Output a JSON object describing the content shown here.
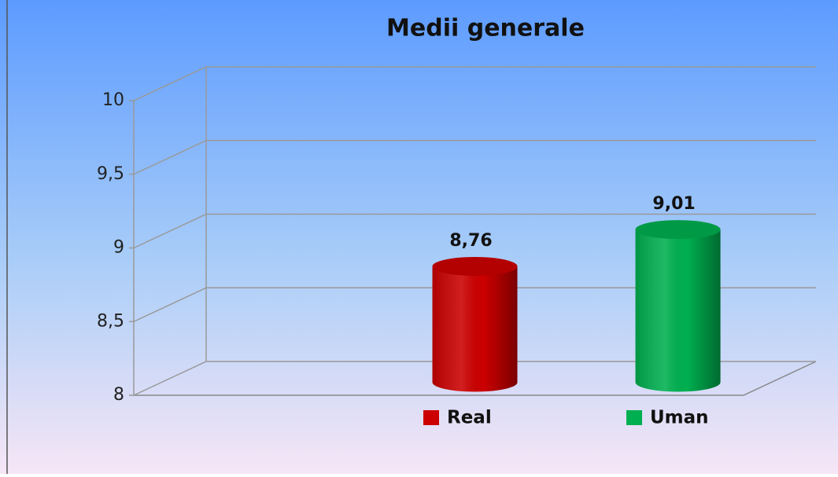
{
  "chart_data": {
    "type": "bar3d",
    "title": "Medii generale",
    "categories": [
      null
    ],
    "series": [
      {
        "name": "Real",
        "color": "#cc0000",
        "values": [
          8.76
        ],
        "value_labels": [
          "8,76"
        ]
      },
      {
        "name": "Uman",
        "color": "#00b050",
        "values": [
          9.01
        ],
        "value_labels": [
          "9,01"
        ]
      }
    ],
    "ylim": [
      8,
      10
    ],
    "yticks": [
      8,
      {
        "value": 8.5,
        "label": "8,5"
      },
      9,
      {
        "value": 9.5,
        "label": "9,5"
      },
      10
    ],
    "grid": true
  }
}
